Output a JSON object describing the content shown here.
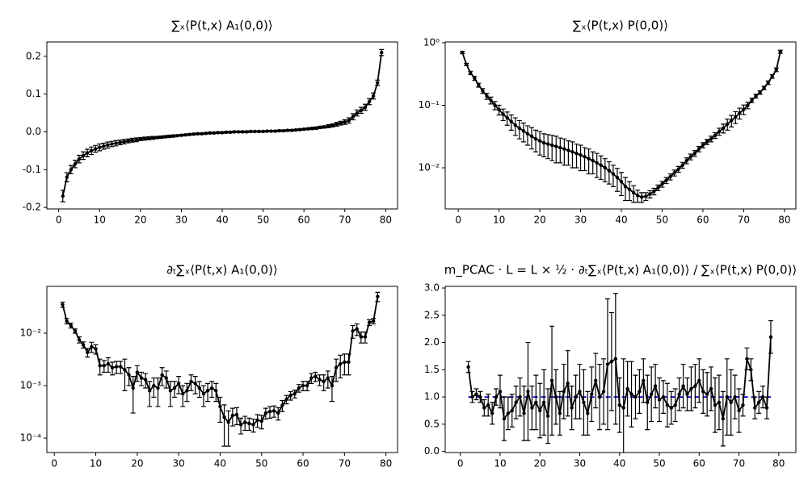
{
  "chart_data": [
    {
      "type": "errorbar",
      "title": "∑ₓ⟨P(t,x) A₁(0,0)⟩",
      "log_y": false,
      "x": [
        1,
        2,
        3,
        4,
        5,
        6,
        7,
        8,
        9,
        10,
        11,
        12,
        13,
        14,
        15,
        16,
        17,
        18,
        19,
        20,
        21,
        22,
        23,
        24,
        25,
        26,
        27,
        28,
        29,
        30,
        31,
        32,
        33,
        34,
        35,
        36,
        37,
        38,
        39,
        40,
        41,
        42,
        43,
        44,
        45,
        46,
        47,
        48,
        49,
        50,
        51,
        52,
        53,
        54,
        55,
        56,
        57,
        58,
        59,
        60,
        61,
        62,
        63,
        64,
        65,
        66,
        67,
        68,
        69,
        70,
        71,
        72,
        73,
        74,
        75,
        76,
        77,
        78,
        79
      ],
      "series": [
        {
          "color": "#000000",
          "values": [
            -0.17,
            -0.12,
            -0.1,
            -0.085,
            -0.072,
            -0.063,
            -0.056,
            -0.05,
            -0.045,
            -0.041,
            -0.038,
            -0.035,
            -0.032,
            -0.03,
            -0.028,
            -0.026,
            -0.024,
            -0.022,
            -0.021,
            -0.019,
            -0.018,
            -0.017,
            -0.016,
            -0.015,
            -0.014,
            -0.013,
            -0.012,
            -0.011,
            -0.01,
            -0.009,
            -0.008,
            -0.007,
            -0.006,
            -0.005,
            -0.005,
            -0.004,
            -0.003,
            -0.003,
            -0.002,
            -0.002,
            -0.001,
            -0.001,
            0,
            0,
            0,
            0,
            0.001,
            0.001,
            0.001,
            0.001,
            0.002,
            0.002,
            0.002,
            0.003,
            0.003,
            0.004,
            0.004,
            0.005,
            0.006,
            0.007,
            0.008,
            0.009,
            0.01,
            0.012,
            0.013,
            0.015,
            0.017,
            0.02,
            0.023,
            0.026,
            0.03,
            0.04,
            0.05,
            0.057,
            0.065,
            0.08,
            0.095,
            0.13,
            0.21
          ],
          "errors": [
            0.015,
            0.012,
            0.011,
            0.01,
            0.01,
            0.01,
            0.01,
            0.01,
            0.009,
            0.009,
            0.008,
            0.008,
            0.007,
            0.007,
            0.006,
            0.006,
            0.005,
            0.005,
            0.005,
            0.004,
            0.004,
            0.004,
            0.004,
            0.003,
            0.003,
            0.003,
            0.003,
            0.003,
            0.002,
            0.002,
            0.002,
            0.002,
            0.002,
            0.002,
            0.002,
            0.002,
            0.002,
            0.002,
            0.002,
            0.002,
            0.002,
            0.002,
            0.002,
            0.002,
            0.002,
            0.002,
            0.002,
            0.002,
            0.002,
            0.002,
            0.002,
            0.002,
            0.002,
            0.002,
            0.002,
            0.002,
            0.002,
            0.002,
            0.002,
            0.002,
            0.002,
            0.003,
            0.003,
            0.003,
            0.003,
            0.004,
            0.004,
            0.005,
            0.005,
            0.006,
            0.007,
            0.008,
            0.008,
            0.008,
            0.008,
            0.008,
            0.008,
            0.007,
            0.008
          ]
        }
      ],
      "xlim": [
        -2.9,
        82.9
      ],
      "xticks": [
        0,
        10,
        20,
        30,
        40,
        50,
        60,
        70,
        80
      ],
      "ylim": [
        -0.204,
        0.238
      ],
      "yticks": [
        -0.2,
        -0.1,
        {
          "value": 0,
          "label": "0.0"
        },
        0.1,
        0.2
      ]
    },
    {
      "type": "errorbar",
      "title": "∑ₓ⟨P(t,x) P(0,0)⟩",
      "log_y": true,
      "x": [
        1,
        2,
        3,
        4,
        5,
        6,
        7,
        8,
        9,
        10,
        11,
        12,
        13,
        14,
        15,
        16,
        17,
        18,
        19,
        20,
        21,
        22,
        23,
        24,
        25,
        26,
        27,
        28,
        29,
        30,
        31,
        32,
        33,
        34,
        35,
        36,
        37,
        38,
        39,
        40,
        41,
        42,
        43,
        44,
        45,
        46,
        47,
        48,
        49,
        50,
        51,
        52,
        53,
        54,
        55,
        56,
        57,
        58,
        59,
        60,
        61,
        62,
        63,
        64,
        65,
        66,
        67,
        68,
        69,
        70,
        71,
        72,
        73,
        74,
        75,
        76,
        77,
        78,
        79
      ],
      "series": [
        {
          "color": "#000000",
          "values": [
            0.7,
            0.45,
            0.33,
            0.27,
            0.21,
            0.17,
            0.14,
            0.12,
            0.1,
            0.085,
            0.072,
            0.063,
            0.055,
            0.048,
            0.043,
            0.039,
            0.035,
            0.032,
            0.029,
            0.027,
            0.025,
            0.024,
            0.023,
            0.022,
            0.021,
            0.02,
            0.019,
            0.018,
            0.017,
            0.016,
            0.015,
            0.014,
            0.013,
            0.012,
            0.011,
            0.01,
            0.009,
            0.008,
            0.007,
            0.006,
            0.005,
            0.0045,
            0.004,
            0.0036,
            0.0034,
            0.0035,
            0.0038,
            0.0042,
            0.0048,
            0.0055,
            0.0063,
            0.0072,
            0.0083,
            0.0095,
            0.011,
            0.013,
            0.015,
            0.017,
            0.02,
            0.023,
            0.026,
            0.029,
            0.033,
            0.038,
            0.043,
            0.05,
            0.057,
            0.065,
            0.075,
            0.086,
            0.1,
            0.12,
            0.14,
            0.16,
            0.19,
            0.23,
            0.29,
            0.37,
            0.72
          ],
          "errors": [
            0.03,
            0.02,
            0.02,
            0.02,
            0.015,
            0.015,
            0.015,
            0.015,
            0.015,
            0.015,
            0.015,
            0.015,
            0.015,
            0.015,
            0.014,
            0.013,
            0.012,
            0.012,
            0.011,
            0.011,
            0.01,
            0.01,
            0.01,
            0.01,
            0.009,
            0.009,
            0.008,
            0.008,
            0.007,
            0.007,
            0.006,
            0.006,
            0.005,
            0.005,
            0.0045,
            0.004,
            0.0035,
            0.003,
            0.0028,
            0.0024,
            0.002,
            0.0015,
            0.0012,
            0.0008,
            0.0006,
            0.0005,
            0.0005,
            0.0005,
            0.0005,
            0.0006,
            0.0007,
            0.0008,
            0.0009,
            0.001,
            0.0012,
            0.0014,
            0.0016,
            0.0018,
            0.002,
            0.0022,
            0.0025,
            0.003,
            0.0035,
            0.005,
            0.007,
            0.01,
            0.012,
            0.014,
            0.015,
            0.015,
            0.012,
            0.01,
            0.01,
            0.01,
            0.012,
            0.015,
            0.02,
            0.025,
            0.04
          ]
        }
      ],
      "xlim": [
        -3.2,
        82.8
      ],
      "xticks": [
        0,
        10,
        20,
        30,
        40,
        50,
        60,
        70,
        80
      ],
      "ylim": [
        0.0022,
        1.03
      ],
      "yticks": [
        {
          "value": 0.01,
          "label": "10⁻²"
        },
        {
          "value": 0.1,
          "label": "10⁻¹"
        },
        {
          "value": 1,
          "label": "10⁰"
        }
      ]
    },
    {
      "type": "errorbar",
      "title": "∂ₜ∑ₓ⟨P(t,x) A₁(0,0)⟩",
      "log_y": true,
      "x": [
        2,
        3,
        4,
        5,
        6,
        7,
        8,
        9,
        10,
        11,
        12,
        13,
        14,
        15,
        16,
        17,
        18,
        19,
        20,
        21,
        22,
        23,
        24,
        25,
        26,
        27,
        28,
        29,
        30,
        31,
        32,
        33,
        34,
        35,
        36,
        37,
        38,
        39,
        40,
        41,
        42,
        43,
        44,
        45,
        46,
        47,
        48,
        49,
        50,
        51,
        52,
        53,
        54,
        55,
        56,
        57,
        58,
        59,
        60,
        61,
        62,
        63,
        64,
        65,
        66,
        67,
        68,
        69,
        70,
        71,
        72,
        73,
        74,
        75,
        76,
        77,
        78
      ],
      "series": [
        {
          "color": "#000000",
          "values": [
            0.035,
            0.017,
            0.014,
            0.011,
            0.0075,
            0.006,
            0.0043,
            0.0055,
            0.005,
            0.0024,
            0.0024,
            0.0026,
            0.0022,
            0.0023,
            0.0023,
            0.002,
            0.0016,
            0.0009,
            0.0018,
            0.0014,
            0.0013,
            0.0008,
            0.001,
            0.0009,
            0.0016,
            0.0014,
            0.0008,
            0.0009,
            0.0011,
            0.0007,
            0.0008,
            0.0012,
            0.0011,
            0.0009,
            0.0007,
            0.0008,
            0.0009,
            0.0008,
            0.0004,
            0.00025,
            0.0002,
            0.00027,
            0.00028,
            0.00018,
            0.0002,
            0.00019,
            0.00018,
            0.00022,
            0.00021,
            0.0003,
            0.00032,
            0.00033,
            0.0003,
            0.00042,
            0.00055,
            0.00065,
            0.0007,
            0.0009,
            0.001,
            0.001,
            0.0014,
            0.0015,
            0.0013,
            0.0012,
            0.0014,
            0.001,
            0.0022,
            0.0026,
            0.0028,
            0.0028,
            0.011,
            0.012,
            0.0085,
            0.0085,
            0.016,
            0.017,
            0.05
          ],
          "errors": [
            0.004,
            0.002,
            0.0015,
            0.001,
            0.001,
            0.0008,
            0.0008,
            0.0012,
            0.001,
            0.0008,
            0.0006,
            0.0008,
            0.0006,
            0.0006,
            0.0006,
            0.0012,
            0.0006,
            0.0006,
            0.0006,
            0.0004,
            0.0004,
            0.0004,
            0.0004,
            0.0005,
            0.0006,
            0.0005,
            0.0004,
            0.0003,
            0.0004,
            0.0003,
            0.0003,
            0.0004,
            0.0004,
            0.0003,
            0.0003,
            0.0003,
            0.0003,
            0.0003,
            0.0002,
            0.00018,
            0.00013,
            0.0001,
            0.0001,
            6e-05,
            6e-05,
            5e-05,
            5e-05,
            6e-05,
            6e-05,
            7e-05,
            8e-05,
            8e-05,
            8e-05,
            0.0001,
            0.0001,
            0.00012,
            0.00012,
            0.00015,
            0.0002,
            0.0002,
            0.0003,
            0.0003,
            0.0003,
            0.0004,
            0.0005,
            0.0005,
            0.001,
            0.0012,
            0.0012,
            0.0012,
            0.003,
            0.003,
            0.002,
            0.002,
            0.002,
            0.002,
            0.01
          ]
        }
      ],
      "xlim": [
        -1.8,
        82.8
      ],
      "xticks": [
        0,
        10,
        20,
        30,
        40,
        50,
        60,
        70,
        80
      ],
      "ylim": [
        5.3e-05,
        0.078
      ],
      "yticks": [
        {
          "value": 0.0001,
          "label": "10⁻⁴"
        },
        {
          "value": 0.001,
          "label": "10⁻³"
        },
        {
          "value": 0.01,
          "label": "10⁻²"
        }
      ]
    },
    {
      "type": "errorbar",
      "title": "m_PCAC · L = L × ½ · ∂ₜ∑ₓ⟨P(t,x) A₁(0,0)⟩ / ∑ₓ⟨P(t,x) P(0,0)⟩",
      "log_y": false,
      "x": [
        2,
        3,
        4,
        5,
        6,
        7,
        8,
        9,
        10,
        11,
        12,
        13,
        14,
        15,
        16,
        17,
        18,
        19,
        20,
        21,
        22,
        23,
        24,
        25,
        26,
        27,
        28,
        29,
        30,
        31,
        32,
        33,
        34,
        35,
        36,
        37,
        38,
        39,
        40,
        41,
        42,
        43,
        44,
        45,
        46,
        47,
        48,
        49,
        50,
        51,
        52,
        53,
        54,
        55,
        56,
        57,
        58,
        59,
        60,
        61,
        62,
        63,
        64,
        65,
        66,
        67,
        68,
        69,
        70,
        71,
        72,
        73,
        74,
        75,
        76,
        77,
        78
      ],
      "series": [
        {
          "color": "#000000",
          "values": [
            1.55,
            1.0,
            1.05,
            1.0,
            0.8,
            0.85,
            0.7,
            1.0,
            1.1,
            0.6,
            0.7,
            0.75,
            0.9,
            1.0,
            0.7,
            1.1,
            0.8,
            0.9,
            0.75,
            0.9,
            0.65,
            1.3,
            1.0,
            0.7,
            1.1,
            1.25,
            0.8,
            1.0,
            1.1,
            0.9,
            0.7,
            1.05,
            1.3,
            1.0,
            1.1,
            1.6,
            1.65,
            1.7,
            0.85,
            0.8,
            1.15,
            1.05,
            1.0,
            1.1,
            1.3,
            0.9,
            1.05,
            1.2,
            0.95,
            1.0,
            0.85,
            0.8,
            0.85,
            1.05,
            1.2,
            1.05,
            1.15,
            1.2,
            1.3,
            1.1,
            1.05,
            1.15,
            0.85,
            0.9,
            0.6,
            1.0,
            0.9,
            1.0,
            0.75,
            0.85,
            1.7,
            1.5,
            0.8,
            0.9,
            1.0,
            0.8,
            2.1
          ],
          "errors": [
            0.1,
            0.1,
            0.1,
            0.1,
            0.15,
            0.2,
            0.2,
            0.15,
            0.3,
            0.4,
            0.3,
            0.3,
            0.3,
            0.35,
            0.5,
            0.9,
            0.4,
            0.5,
            0.5,
            0.6,
            0.5,
            1.0,
            0.5,
            0.4,
            0.5,
            0.6,
            0.4,
            0.4,
            0.5,
            0.6,
            0.4,
            0.5,
            0.5,
            0.6,
            0.6,
            1.2,
            0.9,
            1.2,
            0.5,
            0.9,
            0.5,
            0.6,
            0.4,
            0.4,
            0.4,
            0.5,
            0.5,
            0.4,
            0.4,
            0.3,
            0.4,
            0.3,
            0.3,
            0.3,
            0.4,
            0.3,
            0.4,
            0.4,
            0.4,
            0.4,
            0.4,
            0.4,
            0.5,
            0.5,
            0.5,
            0.7,
            0.6,
            0.4,
            0.4,
            0.2,
            0.2,
            0.2,
            0.2,
            0.2,
            0.2,
            0.2,
            0.3
          ]
        }
      ],
      "reference_line": {
        "value": 1.0,
        "color": "#0000cc"
      },
      "xlim": [
        -3.8,
        84.3
      ],
      "xticks": [
        0,
        10,
        20,
        30,
        40,
        50,
        60,
        70,
        80
      ],
      "ylim": [
        -0.02,
        3.03
      ],
      "yticks": [
        {
          "value": 0,
          "label": "0.0"
        },
        0.5,
        {
          "value": 1,
          "label": "1.0"
        },
        1.5,
        {
          "value": 2,
          "label": "2.0"
        },
        2.5,
        {
          "value": 3,
          "label": "3.0"
        }
      ]
    }
  ]
}
